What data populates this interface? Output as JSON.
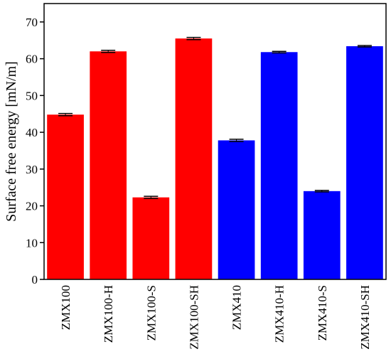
{
  "chart_data": {
    "type": "bar",
    "y_label": "Surface free energy [mN/m]",
    "categories": [
      "ZMX100",
      "ZMX100-H",
      "ZMX100-S",
      "ZMX100-SH",
      "ZMX410",
      "ZMX410-H",
      "ZMX410-S",
      "ZMX410-SH"
    ],
    "values": [
      44.8,
      62.0,
      22.3,
      65.5,
      37.8,
      61.8,
      24.0,
      63.4
    ],
    "errors": [
      0.3,
      0.3,
      0.3,
      0.3,
      0.3,
      0.2,
      0.2,
      0.2
    ],
    "colors": [
      "#ff0000",
      "#ff0000",
      "#ff0000",
      "#ff0000",
      "#0000ff",
      "#0000ff",
      "#0000ff",
      "#0000ff"
    ],
    "ylim": [
      0,
      75
    ],
    "yticks": [
      0,
      10,
      20,
      30,
      40,
      50,
      60,
      70
    ]
  }
}
